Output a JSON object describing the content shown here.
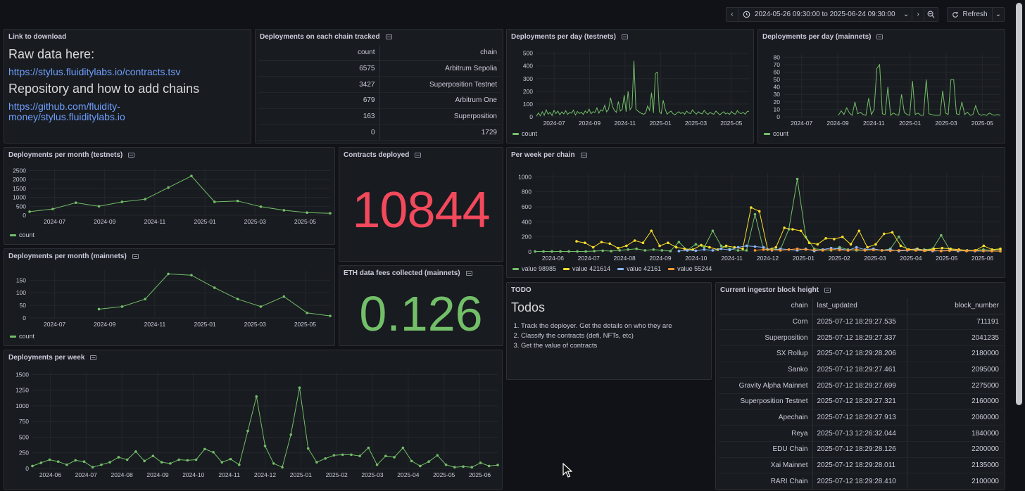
{
  "toolbar": {
    "time_range": "2024-05-26 09:30:00 to 2025-06-24 09:30:00",
    "refresh_label": "Refresh"
  },
  "colors": {
    "green": "#73bf69",
    "yellow": "#fade2a",
    "blue": "#8ab8ff",
    "orange": "#ff9830",
    "red": "#f2495c",
    "link": "#6e9fff"
  },
  "download": {
    "title": "Link to download",
    "raw_heading": "Raw data here:",
    "raw_link": "https://stylus.fluiditylabs.io/contracts.tsv",
    "repo_heading": "Repository and how to add chains",
    "repo_link_line1": "https://github.com/fluidity-",
    "repo_link_line2": "money/stylus.fluiditylabs.io"
  },
  "chain_table": {
    "title": "Deployments on each chain tracked",
    "headers": [
      "count",
      "chain"
    ],
    "rows": [
      [
        "6575",
        "Arbitrum Sepolia"
      ],
      [
        "3427",
        "Superposition Testnet"
      ],
      [
        "679",
        "Arbitrum One"
      ],
      [
        "163",
        "Superposition"
      ],
      [
        "0",
        "1729"
      ]
    ]
  },
  "contracts": {
    "title": "Contracts deployed",
    "value": "10844"
  },
  "eth_fees": {
    "title": "ETH data fees collected (mainnets)",
    "value": "0.126"
  },
  "todo": {
    "title": "TODO",
    "heading": "Todos",
    "items": [
      "Track the deployer. Get the details on who they are",
      "Classify the contracts (defi, NFTs, etc)",
      "Get the value of contracts"
    ]
  },
  "block_table": {
    "title": "Current ingestor block height",
    "headers": [
      "chain",
      "last_updated",
      "block_number"
    ],
    "rows": [
      [
        "Corn",
        "2025-07-12 18:29:27.535",
        "711191"
      ],
      [
        "Superposition",
        "2025-07-12 18:29:27.337",
        "2041235"
      ],
      [
        "SX Rollup",
        "2025-07-12 18:29:28.206",
        "2180000"
      ],
      [
        "Sanko",
        "2025-07-12 18:29:27.461",
        "2095000"
      ],
      [
        "Gravity Alpha Mainnet",
        "2025-07-12 18:29:27.699",
        "2275000"
      ],
      [
        "Superposition Testnet",
        "2025-07-12 18:29:27.321",
        "2160000"
      ],
      [
        "Apechain",
        "2025-07-12 18:29:27.913",
        "2060000"
      ],
      [
        "Reya",
        "2025-07-13 12:26:32.044",
        "1840000"
      ],
      [
        "EDU Chain",
        "2025-07-12 18:29:28.126",
        "2200000"
      ],
      [
        "Xai Mainnet",
        "2025-07-12 18:29:28.011",
        "2135000"
      ],
      [
        "RARI Chain",
        "2025-07-12 18:29:28.410",
        "2100000"
      ]
    ]
  },
  "chart_data": [
    {
      "id": "day_testnets",
      "title": "Deployments per day (testnets)",
      "type": "line",
      "x_ticks": [
        "2024-07",
        "2024-09",
        "2024-11",
        "2025-01",
        "2025-03",
        "2025-05"
      ],
      "y_ticks": [
        0,
        100,
        200,
        300,
        400,
        500
      ],
      "ylim": [
        0,
        520
      ],
      "series": [
        {
          "name": "count",
          "color": "#73bf69",
          "points": false,
          "values": [
            5,
            30,
            8,
            40,
            12,
            55,
            20,
            35,
            10,
            50,
            25,
            45,
            15,
            38,
            22,
            48,
            18,
            33,
            28,
            52,
            14,
            42,
            26,
            36,
            19,
            46,
            30,
            60,
            24,
            40,
            35,
            70,
            28,
            55,
            45,
            90,
            38,
            60,
            150,
            80,
            50,
            35,
            120,
            45,
            60,
            170,
            40,
            200,
            55,
            80,
            440,
            60,
            45,
            35,
            25,
            20,
            30,
            85,
            50,
            190,
            30,
            340,
            350,
            40,
            25,
            130,
            60,
            20,
            35,
            45,
            25,
            15,
            30,
            40,
            25,
            35,
            20,
            45,
            30,
            25,
            55,
            35,
            20,
            40,
            28,
            22,
            50,
            30,
            18,
            35,
            25,
            20,
            45,
            30,
            15,
            28,
            40,
            22,
            30,
            18,
            42,
            26,
            20,
            48,
            30,
            25,
            35,
            20,
            40,
            45
          ]
        }
      ]
    },
    {
      "id": "day_mainnets",
      "title": "Deployments per day (mainnets)",
      "type": "line",
      "x_ticks": [
        "2024-07",
        "2024-09",
        "2024-11",
        "2025-01",
        "2025-03",
        "2025-05"
      ],
      "y_ticks": [
        0,
        10,
        20,
        30,
        40,
        50,
        60,
        70,
        80
      ],
      "ylim": [
        0,
        85
      ],
      "series": [
        {
          "name": "count",
          "color": "#73bf69",
          "points": false,
          "values": [
            null,
            null,
            null,
            null,
            null,
            null,
            null,
            null,
            null,
            null,
            null,
            null,
            null,
            null,
            null,
            null,
            null,
            null,
            null,
            null,
            2,
            8,
            3,
            12,
            5,
            2,
            20,
            4,
            6,
            3,
            2,
            25,
            3,
            10,
            65,
            70,
            4,
            3,
            40,
            2,
            5,
            3,
            2,
            30,
            6,
            3,
            2,
            48,
            3,
            5,
            2,
            2,
            50,
            4,
            3,
            2,
            2,
            2,
            35,
            5,
            3,
            50,
            50,
            4,
            3,
            20,
            3,
            6,
            2,
            3,
            15,
            4,
            2,
            3,
            2,
            5,
            3,
            2,
            3,
            2
          ]
        }
      ]
    },
    {
      "id": "month_testnets",
      "title": "Deployments per month (testnets)",
      "type": "line",
      "x_ticks": [
        "2024-07",
        "2024-09",
        "2024-11",
        "2025-01",
        "2025-03",
        "2025-05"
      ],
      "y_ticks": [
        0,
        500,
        1000,
        1500,
        2000,
        2500
      ],
      "ylim": [
        0,
        2600
      ],
      "series": [
        {
          "name": "count",
          "color": "#73bf69",
          "points": true,
          "values": [
            200,
            350,
            700,
            500,
            750,
            900,
            1550,
            2200,
            750,
            800,
            480,
            280,
            150,
            110
          ]
        }
      ]
    },
    {
      "id": "month_mainnets",
      "title": "Deployments per month (mainnets)",
      "type": "line",
      "x_ticks": [
        "2024-07",
        "2024-09",
        "2024-11",
        "2025-01",
        "2025-03",
        "2025-05"
      ],
      "y_ticks": [
        0,
        50,
        100,
        150
      ],
      "ylim": [
        0,
        190
      ],
      "series": [
        {
          "name": "count",
          "color": "#73bf69",
          "points": true,
          "values": [
            null,
            null,
            null,
            35,
            45,
            75,
            175,
            170,
            120,
            75,
            45,
            85,
            20,
            8
          ]
        }
      ]
    },
    {
      "id": "per_week_chain",
      "title": "Per week per chain",
      "type": "line",
      "x_ticks": [
        "2024-06",
        "2024-07",
        "2024-08",
        "2024-09",
        "2024-10",
        "2024-11",
        "2024-12",
        "2025-01",
        "2025-02",
        "2025-03",
        "2025-04",
        "2025-05",
        "2025-06"
      ],
      "y_ticks": [
        0,
        200,
        400,
        600,
        800,
        1000
      ],
      "ylim": [
        0,
        1050
      ],
      "series": [
        {
          "name": "value 98985",
          "color": "#73bf69",
          "points": true,
          "values": [
            5,
            5,
            5,
            5,
            5,
            5,
            5,
            10,
            15,
            10,
            20,
            30,
            40,
            20,
            30,
            20,
            10,
            130,
            20,
            100,
            60,
            280,
            80,
            40,
            20,
            20,
            500,
            30,
            40,
            30,
            300,
            970,
            200,
            40,
            30,
            20,
            60,
            30,
            20,
            20,
            30,
            20,
            40,
            200,
            30,
            20,
            30,
            40,
            220,
            30,
            20,
            10,
            20,
            30,
            20,
            30
          ]
        },
        {
          "name": "value 421614",
          "color": "#fade2a",
          "points": true,
          "values": [
            null,
            null,
            null,
            null,
            null,
            140,
            120,
            60,
            130,
            110,
            50,
            80,
            150,
            120,
            280,
            80,
            120,
            60,
            40,
            30,
            90,
            60,
            30,
            80,
            60,
            40,
            590,
            540,
            30,
            60,
            320,
            300,
            280,
            120,
            100,
            180,
            170,
            200,
            100,
            280,
            60,
            100,
            240,
            260,
            80,
            30,
            40,
            20,
            40,
            50,
            40,
            30,
            20,
            20,
            80,
            30,
            40
          ]
        },
        {
          "name": "value 42161",
          "color": "#8ab8ff",
          "points": true,
          "values": [
            null,
            null,
            null,
            null,
            null,
            null,
            null,
            null,
            null,
            null,
            null,
            null,
            null,
            null,
            null,
            null,
            null,
            10,
            20,
            15,
            30,
            20,
            40,
            25,
            60,
            80,
            70,
            60,
            20,
            40,
            30,
            20,
            40,
            10,
            30,
            50,
            40,
            20,
            60,
            30,
            40,
            20,
            30,
            10,
            20,
            30,
            20,
            10,
            15,
            20,
            10,
            15,
            10,
            12,
            10,
            8
          ]
        },
        {
          "name": "value 55244",
          "color": "#ff9830",
          "points": true,
          "values": [
            null,
            null,
            null,
            null,
            null,
            null,
            null,
            null,
            null,
            null,
            null,
            null,
            null,
            null,
            null,
            null,
            null,
            null,
            null,
            null,
            null,
            null,
            null,
            null,
            null,
            null,
            20,
            30,
            25,
            20,
            30,
            40,
            30,
            25,
            20,
            30,
            25,
            20,
            30,
            20,
            25,
            20,
            15,
            20,
            25,
            20,
            15,
            20,
            10,
            15,
            20,
            10,
            15,
            12,
            10,
            8
          ]
        }
      ]
    },
    {
      "id": "per_week",
      "title": "Deployments per week",
      "type": "line",
      "x_ticks": [
        "2024-06",
        "2024-07",
        "2024-08",
        "2024-09",
        "2024-10",
        "2024-11",
        "2024-12",
        "2025-01",
        "2025-02",
        "2025-03",
        "2025-04",
        "2025-05",
        "2025-06"
      ],
      "y_ticks": [
        0,
        250,
        500,
        750,
        1000,
        1250,
        1500
      ],
      "ylim": [
        0,
        1550
      ],
      "series": [
        {
          "name": "count",
          "color": "#73bf69",
          "points": true,
          "values": [
            40,
            90,
            140,
            110,
            60,
            130,
            110,
            20,
            60,
            100,
            180,
            140,
            270,
            120,
            200,
            100,
            80,
            140,
            130,
            140,
            310,
            260,
            100,
            150,
            60,
            600,
            1150,
            360,
            80,
            20,
            540,
            1290,
            320,
            100,
            160,
            210,
            220,
            220,
            200,
            330,
            60,
            200,
            180,
            330,
            120,
            40,
            110,
            210,
            60,
            20,
            30,
            20,
            90,
            40,
            55
          ]
        }
      ]
    }
  ]
}
